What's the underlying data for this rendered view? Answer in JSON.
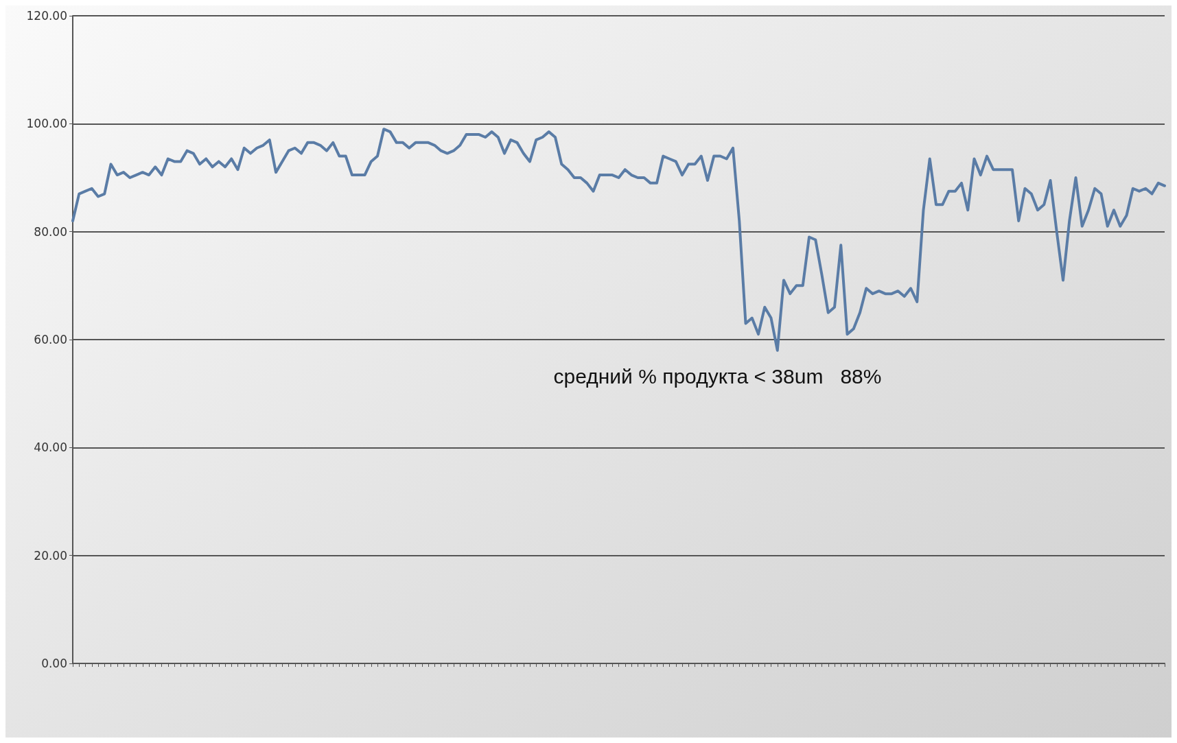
{
  "chart_data": {
    "type": "line",
    "categories": [
      null,
      null,
      null,
      null,
      null,
      null,
      null,
      null,
      null,
      null,
      null,
      null,
      null,
      null,
      null,
      null,
      null,
      null,
      null,
      null,
      null,
      null,
      null,
      null,
      null,
      null,
      null,
      null,
      null,
      null,
      null,
      null,
      null,
      null,
      null,
      null,
      null,
      null,
      null,
      null,
      null,
      null,
      null,
      null,
      null,
      null,
      null,
      null,
      null,
      null,
      null,
      null,
      null,
      null,
      null,
      null,
      null,
      null,
      null,
      null,
      null,
      null,
      null,
      null,
      null,
      null,
      null,
      null,
      null,
      null,
      null,
      null,
      null,
      null,
      null,
      null,
      null,
      null,
      null,
      null,
      null,
      null,
      null,
      null,
      null,
      null,
      null,
      null,
      null,
      null,
      null,
      null,
      null,
      null,
      null,
      null,
      null,
      null,
      null,
      null,
      null,
      null,
      null,
      null,
      null,
      null,
      null,
      null,
      null,
      null,
      null,
      null,
      null,
      null,
      null,
      null,
      null,
      null,
      null,
      null,
      null,
      null,
      null,
      null,
      null,
      null,
      null,
      null,
      null,
      null,
      null,
      null,
      null,
      null,
      null,
      null,
      null,
      null,
      null,
      null,
      null,
      null,
      null,
      null,
      null,
      null,
      null,
      null,
      null,
      null,
      null,
      null,
      null,
      null,
      null,
      null,
      null,
      null,
      null,
      null,
      null,
      null,
      null,
      null,
      null,
      null,
      null,
      null,
      null,
      null,
      null,
      null,
      null
    ],
    "series": [
      {
        "color": "#5a7ca6",
        "values": [
          82,
          87,
          87.5,
          88,
          86.5,
          87,
          92.5,
          90.5,
          91,
          90,
          90.5,
          91,
          90.5,
          92,
          90.5,
          93.5,
          93,
          93,
          95,
          94.5,
          92.5,
          93.5,
          92,
          93,
          92,
          93.5,
          91.5,
          95.5,
          94.5,
          95.5,
          96,
          97,
          91,
          93,
          95,
          95.5,
          94.5,
          96.5,
          96.5,
          96,
          95,
          96.5,
          94,
          94,
          90.5,
          90.5,
          90.5,
          93,
          94,
          99,
          98.5,
          96.5,
          96.5,
          95.5,
          96.5,
          96.5,
          96.5,
          96,
          95,
          94.5,
          95,
          96,
          98,
          98,
          98,
          97.5,
          98.5,
          97.5,
          94.5,
          97,
          96.5,
          94.5,
          93,
          97,
          97.5,
          98.5,
          97.5,
          92.5,
          91.5,
          90,
          90,
          89,
          87.5,
          90.5,
          90.5,
          90.5,
          90,
          91.5,
          90.5,
          90,
          90,
          89,
          89,
          94,
          93.5,
          93,
          90.5,
          92.5,
          92.5,
          94,
          89.5,
          94,
          94,
          93.5,
          95.5,
          82,
          63,
          64,
          61,
          66,
          64,
          58,
          71,
          68.5,
          70,
          70,
          79,
          78.5,
          72,
          65,
          66,
          77.5,
          61,
          62,
          65,
          69.5,
          68.5,
          69,
          68.5,
          68.5,
          69,
          68,
          69.5,
          67,
          84,
          93.5,
          85,
          85,
          87.5,
          87.5,
          89,
          84,
          93.5,
          90.5,
          94,
          91.5,
          91.5,
          91.5,
          91.5,
          82,
          88,
          87,
          84,
          85,
          89.5,
          80,
          71,
          82,
          90,
          81,
          84,
          88,
          87,
          81,
          84,
          81,
          83,
          88,
          87.5,
          88,
          87,
          89,
          88.5
        ]
      }
    ],
    "ylim": [
      0,
      120
    ],
    "yticks": [
      {
        "value": 0,
        "label": "0.00"
      },
      {
        "value": 20,
        "label": "20.00"
      },
      {
        "value": 40,
        "label": "40.00"
      },
      {
        "value": 60,
        "label": "60.00"
      },
      {
        "value": 80,
        "label": "80.00"
      },
      {
        "value": 100,
        "label": "100.00"
      },
      {
        "value": 120,
        "label": "120.00"
      }
    ],
    "grid": "y",
    "tick_labels": "y",
    "line_style": "solid",
    "annotations": [
      "средний % продукта < 38um   88%"
    ]
  }
}
